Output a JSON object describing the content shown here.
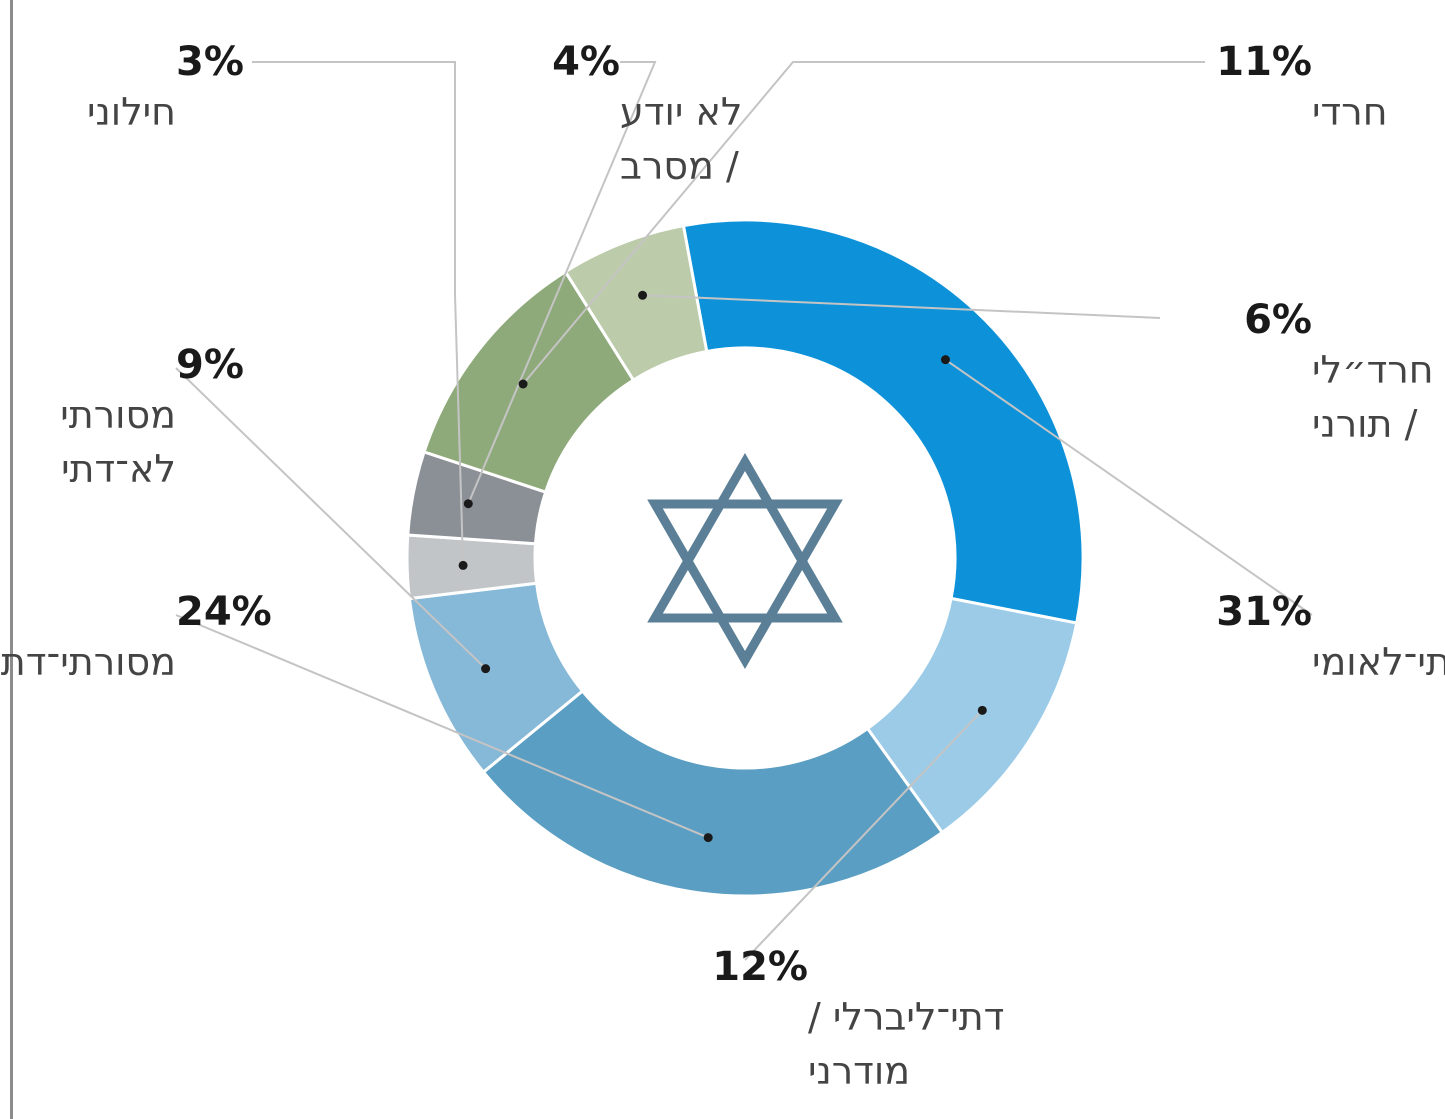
{
  "chart_data": {
    "type": "donut",
    "title": "",
    "center_icon": "star-of-david-icon",
    "slices": [
      {
        "label": "דתי־לאומי",
        "lines": [
          "דתי־לאומי"
        ],
        "value": 31,
        "pct_label": "31%",
        "color": "#0d92da"
      },
      {
        "label": "דתי־ליברלי / מודרני",
        "lines": [
          "דתי־ליברלי /",
          "מודרני"
        ],
        "value": 12,
        "pct_label": "12%",
        "color": "#9ccbe8"
      },
      {
        "label": "מסורתי־דתי",
        "lines": [
          "מסורתי־דתי"
        ],
        "value": 24,
        "pct_label": "24%",
        "color": "#5b9ec3"
      },
      {
        "label": "מסורתי לא־דתי",
        "lines": [
          "מסורתי",
          "לא־דתי"
        ],
        "value": 9,
        "pct_label": "9%",
        "color": "#86b8d8"
      },
      {
        "label": "חילוני",
        "lines": [
          "חילוני"
        ],
        "value": 3,
        "pct_label": "3%",
        "color": "#c2c5c8"
      },
      {
        "label": "לא יודע / מסרב",
        "lines": [
          "לא יודע",
          "/ מסרב"
        ],
        "value": 4,
        "pct_label": "4%",
        "color": "#8b9096"
      },
      {
        "label": "חרדי",
        "lines": [
          "חרדי"
        ],
        "value": 11,
        "pct_label": "11%",
        "color": "#8faa7a"
      },
      {
        "label": "חרד״לי / תורני",
        "lines": [
          "חרד״לי",
          "/ תורני"
        ],
        "value": 6,
        "pct_label": "6%",
        "color": "#bccba9"
      }
    ]
  }
}
